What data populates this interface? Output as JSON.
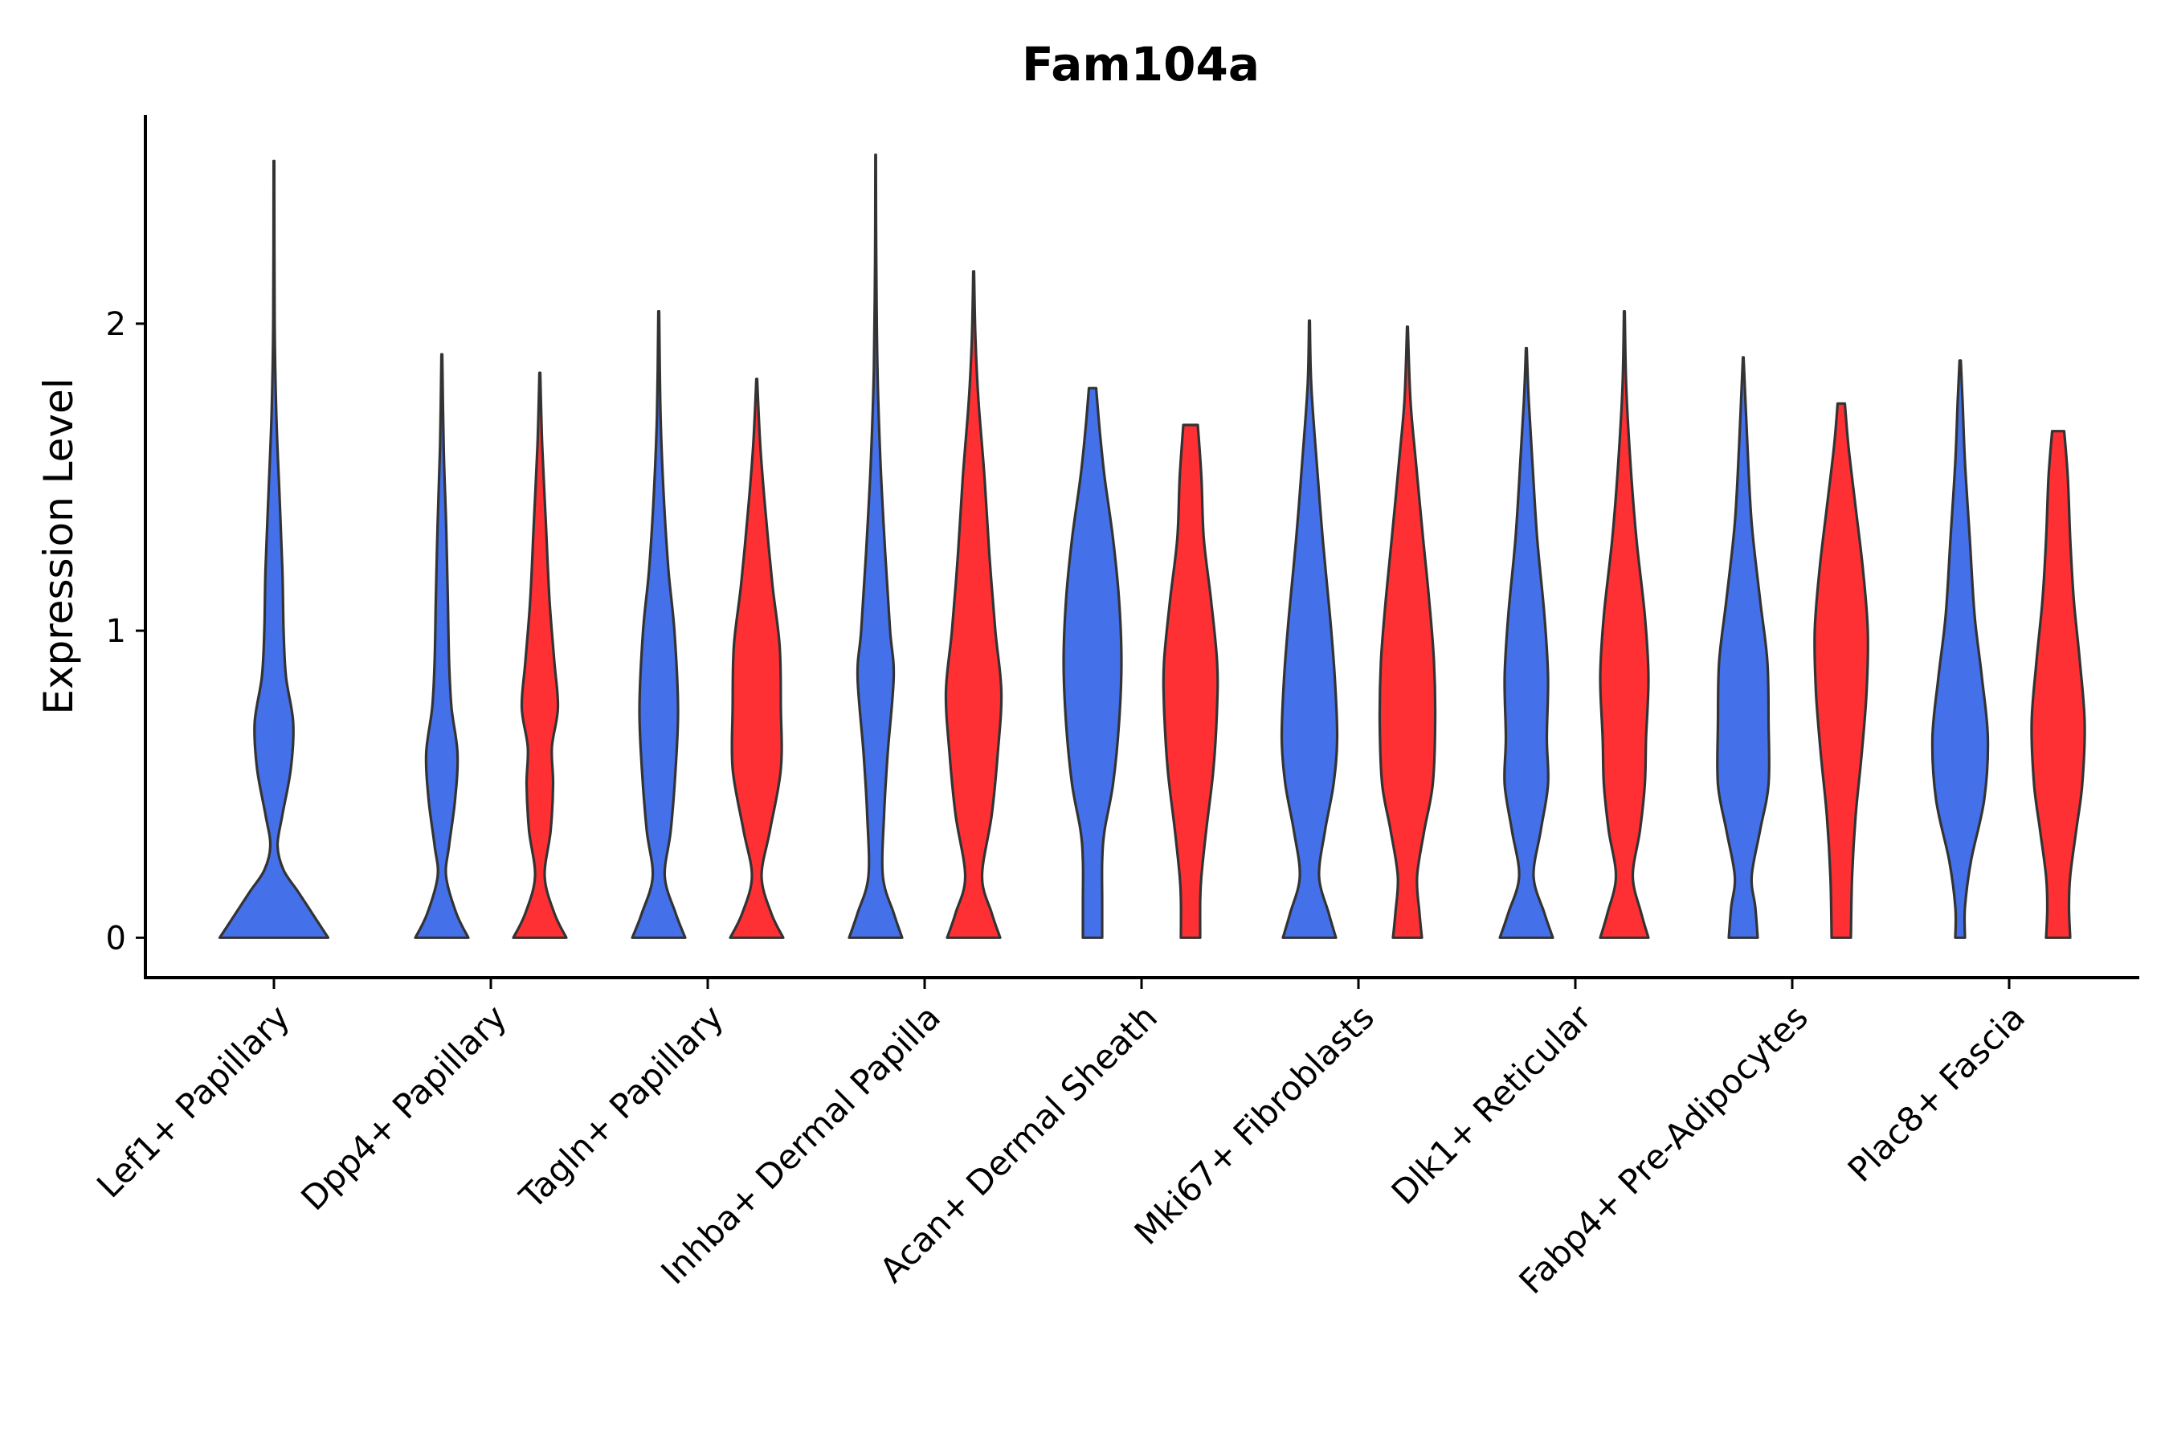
{
  "chart_data": {
    "type": "violin",
    "title": "Fam104a",
    "xlabel": "",
    "ylabel": "Expression Level",
    "ylim": [
      -0.13,
      2.68
    ],
    "yticks": [
      0,
      1,
      2
    ],
    "categories": [
      "Lef1+ Papillary",
      "Dpp4+ Papillary",
      "Tagln+ Papillary",
      "Inhba+ Dermal Papilla",
      "Acan+ Dermal Sheath",
      "Mki67+ Fibroblasts",
      "Dlk1+ Reticular",
      "Fabp4+ Pre-Adipocytes",
      "Plac8+ Fascia"
    ],
    "colors": {
      "blue": "#4470EA",
      "red": "#FF3033"
    },
    "violins": [
      {
        "category": 0,
        "color": "blue",
        "max": 2.53,
        "profile": [
          [
            0,
            0.45
          ],
          [
            0.06,
            0.35
          ],
          [
            0.15,
            0.2
          ],
          [
            0.22,
            0.08
          ],
          [
            0.3,
            0.03
          ],
          [
            0.4,
            0.07
          ],
          [
            0.55,
            0.14
          ],
          [
            0.7,
            0.16
          ],
          [
            0.85,
            0.1
          ],
          [
            1.0,
            0.08
          ],
          [
            1.2,
            0.07
          ],
          [
            1.45,
            0.045
          ],
          [
            1.7,
            0.02
          ],
          [
            2.0,
            0.006
          ],
          [
            2.53,
            0.003
          ]
        ]
      },
      {
        "category": 1,
        "color": "blue",
        "max": 1.9,
        "profile": [
          [
            0,
            0.22
          ],
          [
            0.08,
            0.12
          ],
          [
            0.2,
            0.035
          ],
          [
            0.3,
            0.06
          ],
          [
            0.45,
            0.11
          ],
          [
            0.6,
            0.13
          ],
          [
            0.75,
            0.08
          ],
          [
            0.9,
            0.06
          ],
          [
            1.1,
            0.05
          ],
          [
            1.35,
            0.035
          ],
          [
            1.6,
            0.015
          ],
          [
            1.9,
            0.003
          ]
        ]
      },
      {
        "category": 1,
        "color": "red",
        "max": 1.84,
        "profile": [
          [
            0,
            0.22
          ],
          [
            0.08,
            0.12
          ],
          [
            0.2,
            0.04
          ],
          [
            0.35,
            0.09
          ],
          [
            0.5,
            0.11
          ],
          [
            0.62,
            0.1
          ],
          [
            0.75,
            0.15
          ],
          [
            0.9,
            0.12
          ],
          [
            1.1,
            0.08
          ],
          [
            1.35,
            0.05
          ],
          [
            1.6,
            0.02
          ],
          [
            1.84,
            0.003
          ]
        ]
      },
      {
        "category": 2,
        "color": "blue",
        "max": 2.04,
        "profile": [
          [
            0,
            0.22
          ],
          [
            0.08,
            0.14
          ],
          [
            0.2,
            0.05
          ],
          [
            0.35,
            0.1
          ],
          [
            0.55,
            0.14
          ],
          [
            0.75,
            0.16
          ],
          [
            1.0,
            0.13
          ],
          [
            1.2,
            0.08
          ],
          [
            1.45,
            0.04
          ],
          [
            1.7,
            0.015
          ],
          [
            2.04,
            0.003
          ]
        ]
      },
      {
        "category": 2,
        "color": "red",
        "max": 1.82,
        "profile": [
          [
            0,
            0.22
          ],
          [
            0.08,
            0.12
          ],
          [
            0.2,
            0.04
          ],
          [
            0.35,
            0.11
          ],
          [
            0.55,
            0.2
          ],
          [
            0.75,
            0.2
          ],
          [
            0.95,
            0.19
          ],
          [
            1.15,
            0.13
          ],
          [
            1.4,
            0.07
          ],
          [
            1.6,
            0.03
          ],
          [
            1.82,
            0.003
          ]
        ]
      },
      {
        "category": 3,
        "color": "blue",
        "max": 2.55,
        "profile": [
          [
            0,
            0.22
          ],
          [
            0.08,
            0.15
          ],
          [
            0.2,
            0.06
          ],
          [
            0.4,
            0.07
          ],
          [
            0.6,
            0.1
          ],
          [
            0.85,
            0.15
          ],
          [
            1.0,
            0.12
          ],
          [
            1.25,
            0.08
          ],
          [
            1.55,
            0.04
          ],
          [
            1.85,
            0.015
          ],
          [
            2.2,
            0.005
          ],
          [
            2.55,
            0.002
          ]
        ]
      },
      {
        "category": 3,
        "color": "red",
        "max": 2.17,
        "profile": [
          [
            0,
            0.22
          ],
          [
            0.08,
            0.15
          ],
          [
            0.2,
            0.07
          ],
          [
            0.4,
            0.15
          ],
          [
            0.6,
            0.2
          ],
          [
            0.8,
            0.23
          ],
          [
            1.0,
            0.18
          ],
          [
            1.25,
            0.13
          ],
          [
            1.5,
            0.09
          ],
          [
            1.75,
            0.04
          ],
          [
            1.95,
            0.015
          ],
          [
            2.17,
            0.003
          ]
        ]
      },
      {
        "category": 4,
        "color": "blue",
        "max": 1.79,
        "profile": [
          [
            0,
            0.08
          ],
          [
            0.12,
            0.08
          ],
          [
            0.25,
            0.08
          ],
          [
            0.35,
            0.1
          ],
          [
            0.5,
            0.17
          ],
          [
            0.7,
            0.22
          ],
          [
            0.9,
            0.24
          ],
          [
            1.1,
            0.22
          ],
          [
            1.3,
            0.17
          ],
          [
            1.5,
            0.1
          ],
          [
            1.65,
            0.06
          ],
          [
            1.79,
            0.03
          ]
        ]
      },
      {
        "category": 4,
        "color": "red",
        "max": 1.67,
        "profile": [
          [
            0,
            0.08
          ],
          [
            0.12,
            0.08
          ],
          [
            0.2,
            0.09
          ],
          [
            0.35,
            0.13
          ],
          [
            0.55,
            0.19
          ],
          [
            0.75,
            0.22
          ],
          [
            0.9,
            0.22
          ],
          [
            1.1,
            0.17
          ],
          [
            1.3,
            0.11
          ],
          [
            1.5,
            0.09
          ],
          [
            1.67,
            0.06
          ]
        ]
      },
      {
        "category": 5,
        "color": "blue",
        "max": 2.01,
        "profile": [
          [
            0,
            0.22
          ],
          [
            0.08,
            0.16
          ],
          [
            0.2,
            0.08
          ],
          [
            0.35,
            0.13
          ],
          [
            0.5,
            0.2
          ],
          [
            0.65,
            0.23
          ],
          [
            0.85,
            0.21
          ],
          [
            1.05,
            0.17
          ],
          [
            1.3,
            0.11
          ],
          [
            1.55,
            0.06
          ],
          [
            1.8,
            0.015
          ],
          [
            2.01,
            0.003
          ]
        ]
      },
      {
        "category": 5,
        "color": "red",
        "max": 1.99,
        "profile": [
          [
            0,
            0.12
          ],
          [
            0.08,
            0.1
          ],
          [
            0.2,
            0.08
          ],
          [
            0.35,
            0.14
          ],
          [
            0.5,
            0.21
          ],
          [
            0.7,
            0.23
          ],
          [
            0.9,
            0.22
          ],
          [
            1.1,
            0.18
          ],
          [
            1.3,
            0.13
          ],
          [
            1.55,
            0.07
          ],
          [
            1.75,
            0.025
          ],
          [
            1.99,
            0.003
          ]
        ]
      },
      {
        "category": 6,
        "color": "blue",
        "max": 1.92,
        "profile": [
          [
            0,
            0.22
          ],
          [
            0.08,
            0.15
          ],
          [
            0.2,
            0.06
          ],
          [
            0.35,
            0.12
          ],
          [
            0.5,
            0.18
          ],
          [
            0.65,
            0.17
          ],
          [
            0.85,
            0.18
          ],
          [
            1.05,
            0.15
          ],
          [
            1.3,
            0.09
          ],
          [
            1.55,
            0.05
          ],
          [
            1.75,
            0.02
          ],
          [
            1.92,
            0.003
          ]
        ]
      },
      {
        "category": 6,
        "color": "red",
        "max": 2.04,
        "profile": [
          [
            0,
            0.2
          ],
          [
            0.08,
            0.14
          ],
          [
            0.2,
            0.07
          ],
          [
            0.35,
            0.13
          ],
          [
            0.5,
            0.17
          ],
          [
            0.65,
            0.18
          ],
          [
            0.85,
            0.2
          ],
          [
            1.05,
            0.17
          ],
          [
            1.3,
            0.1
          ],
          [
            1.55,
            0.05
          ],
          [
            1.8,
            0.015
          ],
          [
            2.04,
            0.003
          ]
        ]
      },
      {
        "category": 7,
        "color": "blue",
        "max": 1.89,
        "profile": [
          [
            0,
            0.12
          ],
          [
            0.1,
            0.1
          ],
          [
            0.2,
            0.07
          ],
          [
            0.35,
            0.14
          ],
          [
            0.5,
            0.21
          ],
          [
            0.7,
            0.21
          ],
          [
            0.9,
            0.2
          ],
          [
            1.1,
            0.14
          ],
          [
            1.35,
            0.07
          ],
          [
            1.6,
            0.035
          ],
          [
            1.89,
            0.003
          ]
        ]
      },
      {
        "category": 7,
        "color": "red",
        "max": 1.74,
        "profile": [
          [
            0,
            0.08
          ],
          [
            0.2,
            0.09
          ],
          [
            0.4,
            0.12
          ],
          [
            0.6,
            0.17
          ],
          [
            0.8,
            0.21
          ],
          [
            1.0,
            0.22
          ],
          [
            1.2,
            0.18
          ],
          [
            1.4,
            0.12
          ],
          [
            1.6,
            0.06
          ],
          [
            1.74,
            0.03
          ]
        ]
      },
      {
        "category": 8,
        "color": "blue",
        "max": 1.88,
        "profile": [
          [
            0,
            0.04
          ],
          [
            0.1,
            0.04
          ],
          [
            0.25,
            0.09
          ],
          [
            0.45,
            0.2
          ],
          [
            0.65,
            0.23
          ],
          [
            0.85,
            0.18
          ],
          [
            1.05,
            0.12
          ],
          [
            1.3,
            0.08
          ],
          [
            1.55,
            0.04
          ],
          [
            1.75,
            0.02
          ],
          [
            1.88,
            0.005
          ]
        ]
      },
      {
        "category": 8,
        "color": "red",
        "max": 1.65,
        "profile": [
          [
            0,
            0.1
          ],
          [
            0.1,
            0.09
          ],
          [
            0.2,
            0.1
          ],
          [
            0.35,
            0.15
          ],
          [
            0.5,
            0.2
          ],
          [
            0.7,
            0.22
          ],
          [
            0.9,
            0.18
          ],
          [
            1.1,
            0.13
          ],
          [
            1.3,
            0.1
          ],
          [
            1.5,
            0.08
          ],
          [
            1.65,
            0.05
          ]
        ]
      }
    ]
  }
}
